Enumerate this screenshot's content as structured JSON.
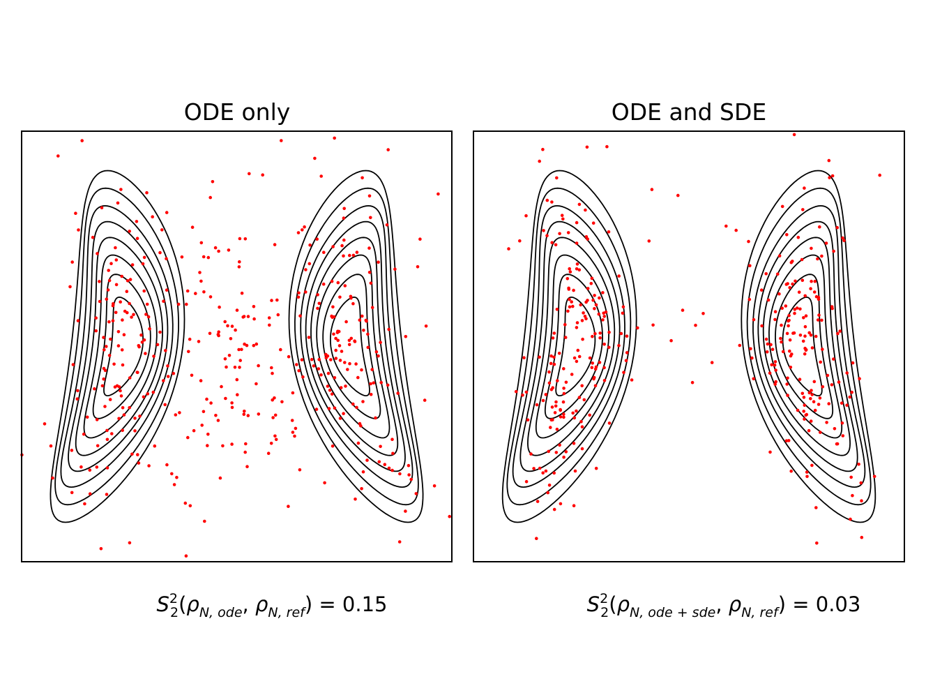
{
  "chart_data": [
    {
      "type": "scatter",
      "title": "ODE only",
      "xlabel": "S22(ρN,ode, ρN,ref) = 0.15",
      "xlabel_parts": {
        "sup": "2",
        "sub": "2",
        "p1": "N, ode",
        "p2": "N, ref",
        "value": "0.15"
      },
      "axes_ticks": false,
      "xlim": [
        -2.4,
        2.4
      ],
      "ylim": [
        -2.4,
        2.4
      ],
      "point_color": "#ff0000",
      "contour_color": "#000000",
      "contour_centers": [
        [
          -1.5,
          0
        ],
        [
          1.5,
          0
        ]
      ],
      "contour_levels": [
        0.1,
        0.2,
        0.3,
        0.4,
        0.5,
        0.6,
        0.7,
        0.8
      ],
      "n_points": 420,
      "points_description": "spread across whole box, two clusters near contours plus a broad central band"
    },
    {
      "type": "scatter",
      "title": "ODE and SDE",
      "xlabel": "S22(ρN,ode+sde, ρN,ref) = 0.03",
      "xlabel_parts": {
        "sup": "2",
        "sub": "2",
        "p1": "N, ode + sde",
        "p2": "N, ref",
        "value": "0.03"
      },
      "axes_ticks": false,
      "xlim": [
        -2.4,
        2.4
      ],
      "ylim": [
        -2.4,
        2.4
      ],
      "point_color": "#ff0000",
      "contour_color": "#000000",
      "contour_centers": [
        [
          -1.5,
          0
        ],
        [
          1.5,
          0
        ]
      ],
      "contour_levels": [
        0.1,
        0.2,
        0.3,
        0.4,
        0.5,
        0.6,
        0.7,
        0.8
      ],
      "n_points": 360,
      "points_description": "concentrated within the two contour regions, few outliers in the middle"
    }
  ]
}
